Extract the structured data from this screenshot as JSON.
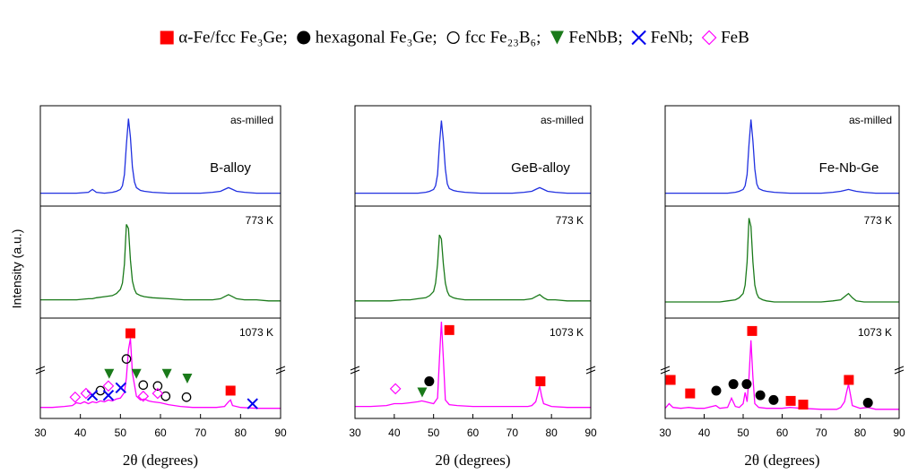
{
  "legend": [
    {
      "name": "α-Fe/fcc Fe₃Ge;",
      "color": "#ff0000",
      "marker": "square"
    },
    {
      "name": "hexagonal Fe₃Ge;",
      "color": "#000000",
      "marker": "circle"
    },
    {
      "name": "fcc Fe₂₃B₆;",
      "color": "#000000",
      "marker": "circle-open"
    },
    {
      "name": "FeNbB;",
      "color": "#1a7a1a",
      "marker": "triangle-down"
    },
    {
      "name": "FeNb;",
      "color": "#0000ee",
      "marker": "x"
    },
    {
      "name": "FeB",
      "color": "#ff00ff",
      "marker": "diamond-open"
    }
  ],
  "y_label": "Intensity (a.u.)",
  "chart_data": [
    {
      "type": "line",
      "annotation": "B-alloy",
      "xlabel": "2θ (degrees)",
      "xlim": [
        30,
        90
      ],
      "xticks": [
        30,
        40,
        50,
        60,
        70,
        80,
        90
      ],
      "panels": [
        {
          "label": "as-milled",
          "color": "#2030e0",
          "ylim": [
            0,
            100
          ],
          "x": [
            30,
            33,
            36,
            39,
            42,
            43,
            44,
            46,
            48,
            49,
            50,
            50.5,
            51,
            51.5,
            52,
            52.5,
            53,
            53.5,
            54,
            55,
            56,
            58,
            62,
            66,
            70,
            73,
            75,
            76,
            77,
            78,
            79,
            81,
            84,
            87,
            90
          ],
          "values": [
            10,
            10,
            10,
            10,
            11,
            14,
            11,
            10,
            11,
            12,
            14,
            18,
            30,
            62,
            90,
            70,
            38,
            22,
            16,
            13,
            12,
            11,
            10,
            10,
            10,
            11,
            12,
            14,
            16,
            14,
            12,
            11,
            10,
            10,
            10
          ]
        },
        {
          "label": "773 K",
          "color": "#1a7a1a",
          "ylim": [
            0,
            100
          ],
          "x": [
            30,
            33,
            36,
            39,
            42,
            43,
            44,
            46,
            48,
            49,
            50,
            50.5,
            51,
            51.5,
            52,
            52.5,
            53,
            53.5,
            54,
            55,
            56,
            58,
            62,
            66,
            70,
            73,
            75,
            76,
            77,
            78,
            79,
            81,
            84,
            87,
            90
          ],
          "values": [
            14,
            14,
            14,
            14,
            15,
            15,
            16,
            17,
            18,
            20,
            24,
            30,
            48,
            86,
            82,
            52,
            32,
            24,
            20,
            18,
            17,
            16,
            15,
            14,
            14,
            14,
            15,
            17,
            19,
            17,
            15,
            14,
            14,
            13,
            13
          ]
        },
        {
          "label": "1073 K",
          "color": "#ff00ff",
          "ylim": [
            0,
            100
          ],
          "x": [
            30,
            33,
            36,
            38,
            39,
            40,
            41,
            42,
            43,
            44,
            45,
            46,
            47,
            48,
            49,
            50,
            51,
            51.5,
            52,
            52.5,
            53,
            54,
            55,
            56,
            57,
            58,
            60,
            62,
            65,
            68,
            71,
            74,
            76,
            77,
            77.5,
            78,
            80,
            84,
            90
          ],
          "values": [
            8,
            8,
            9,
            10,
            13,
            12,
            14,
            12,
            14,
            13,
            15,
            14,
            16,
            15,
            17,
            18,
            24,
            40,
            70,
            82,
            45,
            20,
            16,
            17,
            15,
            14,
            13,
            11,
            9,
            8,
            8,
            8,
            9,
            14,
            16,
            10,
            8,
            7,
            7
          ],
          "markers": [
            {
              "x": [
                52.5,
                77.5
              ],
              "values": [
                87.5,
                26
              ]
            },
            {
              "x": [],
              "values": []
            },
            {
              "x": [
                45,
                51.5,
                55.7,
                59.3,
                61.3,
                66.5
              ],
              "values": [
                26,
                60,
                32,
                31,
                20,
                19
              ]
            },
            {
              "x": [
                47.2,
                54,
                61.6,
                66.7
              ],
              "values": [
                44,
                44,
                44,
                39
              ]
            },
            {
              "x": [
                43,
                47,
                50.1,
                83
              ],
              "values": [
                21,
                21,
                29,
                12
              ]
            },
            {
              "x": [
                38.7,
                41.4,
                47,
                55.7,
                59.3
              ],
              "values": [
                19,
                23,
                31,
                20,
                23
              ]
            }
          ]
        }
      ]
    },
    {
      "type": "line",
      "annotation": "GeB-alloy",
      "xlabel": "2θ (degrees)",
      "xlim": [
        30,
        90
      ],
      "xticks": [
        30,
        40,
        50,
        60,
        70,
        80,
        90
      ],
      "panels": [
        {
          "label": "as-milled",
          "color": "#2030e0",
          "ylim": [
            0,
            100
          ],
          "x": [
            30,
            33,
            36,
            39,
            42,
            43,
            44,
            46,
            48,
            49,
            50,
            50.5,
            51,
            51.5,
            52,
            52.5,
            53,
            53.5,
            54,
            55,
            56,
            58,
            62,
            66,
            70,
            73,
            75,
            76,
            77,
            78,
            79,
            81,
            84,
            87,
            90
          ],
          "values": [
            10,
            10,
            10,
            10,
            10,
            10,
            10,
            10,
            11,
            12,
            14,
            18,
            30,
            62,
            88,
            66,
            36,
            20,
            15,
            13,
            12,
            11,
            10,
            10,
            10,
            11,
            12,
            14,
            16,
            14,
            12,
            11,
            10,
            10,
            10
          ]
        },
        {
          "label": "773 K",
          "color": "#1a7a1a",
          "ylim": [
            0,
            100
          ],
          "x": [
            30,
            33,
            36,
            39,
            42,
            43,
            44,
            46,
            48,
            49,
            50,
            50.5,
            51,
            51.5,
            52,
            52.5,
            53,
            53.5,
            54,
            55,
            56,
            58,
            62,
            66,
            70,
            73,
            75,
            76,
            77,
            78,
            79,
            81,
            84,
            87,
            90
          ],
          "values": [
            13,
            13,
            13,
            13,
            14,
            14,
            14,
            15,
            16,
            18,
            22,
            30,
            48,
            76,
            72,
            48,
            30,
            22,
            18,
            16,
            15,
            14,
            14,
            14,
            14,
            14,
            15,
            17,
            19,
            16,
            14,
            14,
            13,
            13,
            13
          ]
        },
        {
          "label": "1073 K",
          "color": "#ff00ff",
          "ylim": [
            0,
            100
          ],
          "x": [
            30,
            34,
            38,
            40,
            42,
            44,
            46,
            47,
            48,
            49,
            50,
            51,
            51.5,
            52,
            52.5,
            53,
            54,
            56,
            60,
            65,
            70,
            74,
            75,
            76,
            76.5,
            77,
            77.5,
            78,
            80,
            84,
            90
          ],
          "values": [
            9,
            9,
            10,
            12,
            12,
            13,
            14,
            15,
            14,
            13,
            12,
            18,
            60,
            100,
            60,
            16,
            11,
            10,
            9,
            9,
            9,
            9,
            10,
            14,
            22,
            31,
            20,
            12,
            9,
            8,
            8
          ],
          "markers": [
            {
              "x": [
                54,
                77.2
              ],
              "values": [
                91,
                36
              ]
            },
            {
              "x": [
                48.9
              ],
              "values": [
                36
              ]
            },
            {
              "x": [],
              "values": []
            },
            {
              "x": [
                47.1
              ],
              "values": [
                24
              ]
            },
            {
              "x": [],
              "values": []
            },
            {
              "x": [
                40.3
              ],
              "values": [
                28
              ]
            }
          ]
        }
      ]
    },
    {
      "type": "line",
      "annotation": "Fe-Nb-Ge",
      "xlabel": "2θ (degrees)",
      "xlim": [
        30,
        90
      ],
      "xticks": [
        30,
        40,
        50,
        60,
        70,
        80,
        90
      ],
      "panels": [
        {
          "label": "as-milled",
          "color": "#2030e0",
          "ylim": [
            0,
            100
          ],
          "x": [
            30,
            33,
            36,
            39,
            42,
            43,
            44,
            46,
            48,
            49,
            50,
            50.5,
            51,
            51.5,
            52,
            52.5,
            53,
            53.5,
            54,
            55,
            56,
            58,
            62,
            66,
            70,
            73,
            75,
            76,
            77,
            78,
            79,
            81,
            84,
            87,
            90
          ],
          "values": [
            10,
            10,
            10,
            10,
            10,
            10,
            10,
            10,
            11,
            12,
            14,
            18,
            30,
            62,
            89,
            66,
            36,
            20,
            15,
            13,
            12,
            11,
            10,
            10,
            10,
            11,
            12,
            13,
            14,
            13,
            12,
            11,
            10,
            10,
            10
          ]
        },
        {
          "label": "773 K",
          "color": "#1a7a1a",
          "ylim": [
            0,
            100
          ],
          "x": [
            30,
            33,
            36,
            39,
            42,
            43,
            44,
            46,
            48,
            49,
            50,
            50.5,
            51,
            51.5,
            52,
            52.5,
            53,
            53.5,
            54,
            55,
            56,
            58,
            62,
            66,
            70,
            73,
            75,
            76,
            77,
            78,
            79,
            81,
            84,
            87,
            90
          ],
          "values": [
            12,
            12,
            12,
            12,
            12,
            12,
            12,
            13,
            14,
            16,
            20,
            28,
            50,
            92,
            84,
            50,
            28,
            20,
            16,
            14,
            13,
            12,
            12,
            12,
            12,
            13,
            14,
            17,
            20,
            16,
            13,
            12,
            12,
            12,
            12
          ]
        },
        {
          "label": "1073 K",
          "color": "#ff00ff",
          "ylim": [
            0,
            100
          ],
          "x": [
            30,
            31,
            32,
            34,
            36,
            38,
            40,
            43,
            44,
            46,
            47,
            48,
            49,
            50,
            50.5,
            51,
            51.5,
            52,
            52.5,
            53,
            54,
            56,
            58,
            60,
            62,
            65,
            70,
            74,
            75,
            76,
            76.5,
            77,
            77.5,
            78,
            80,
            82,
            84,
            87,
            90
          ],
          "values": [
            7,
            12,
            8,
            7,
            8,
            7,
            7,
            10,
            7,
            8,
            18,
            9,
            8,
            12,
            24,
            14,
            40,
            80,
            40,
            12,
            8,
            7,
            7,
            7,
            8,
            7,
            6,
            6,
            8,
            14,
            24,
            33,
            22,
            10,
            7,
            8,
            6,
            6,
            6
          ],
          "markers": [
            {
              "x": [
                31.4,
                36.4,
                52.3,
                62.2,
                65.4,
                77.1
              ],
              "values": [
                37.5,
                23,
                90,
                15,
                11,
                37.5
              ]
            },
            {
              "x": [
                43.1,
                47.5,
                50.9,
                54.4,
                57.8,
                82
              ],
              "values": [
                26,
                33,
                33,
                21,
                16,
                13
              ]
            },
            {
              "x": [],
              "values": []
            },
            {
              "x": [],
              "values": []
            },
            {
              "x": [],
              "values": []
            },
            {
              "x": [],
              "values": []
            }
          ]
        }
      ]
    }
  ]
}
